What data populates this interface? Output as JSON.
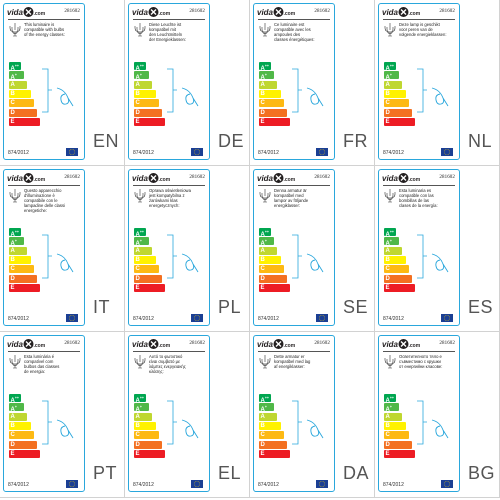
{
  "colors": {
    "card_border": "#2aa7dc",
    "energy_classes": [
      "#00a650",
      "#50b848",
      "#bfd730",
      "#fff200",
      "#fdb913",
      "#f37021",
      "#ed1c24"
    ],
    "eu_flag": "#1b3f94",
    "eu_star": "#ffd200",
    "brand_text": "#231f20"
  },
  "brand": {
    "name": "vidaXL",
    "left_text": "vida",
    "right_text": ".com"
  },
  "energy_classes": [
    {
      "letter": "A",
      "sup": "++"
    },
    {
      "letter": "A",
      "sup": "+"
    },
    {
      "letter": "A",
      "sup": ""
    },
    {
      "letter": "B",
      "sup": ""
    },
    {
      "letter": "C",
      "sup": ""
    },
    {
      "letter": "D",
      "sup": ""
    },
    {
      "letter": "E",
      "sup": ""
    }
  ],
  "icons": {
    "brand": "vidaxl-logo",
    "fixture": "chandelier-icon",
    "compatibility": "bracket-icon",
    "bulb": "lamp-icon",
    "flag": "eu-flag-icon"
  },
  "labels": [
    {
      "lang": "EN",
      "model": "281602",
      "regulation": "874/2012",
      "text": "This luminaire is\ncompatible with bulbs\nof the energy classes:"
    },
    {
      "lang": "DE",
      "model": "281602",
      "regulation": "874/2012",
      "text": "Diese Leuchte ist\nkompatibel mit\nden Leuchtmitteln\nder Energieklassen:"
    },
    {
      "lang": "FR",
      "model": "281602",
      "regulation": "874/2012",
      "text": "Ce luminaire est\ncompatible avec les\nampoules des\nclasses énergétiques:"
    },
    {
      "lang": "NL",
      "model": "281602",
      "regulation": "874/2012",
      "text": "Deze lamp is geschikt\nvoor peren van de\nvolgende energieklassen:"
    },
    {
      "lang": "IT",
      "model": "281602",
      "regulation": "874/2012",
      "text": "Questo apparecchio\nd'illuminazione è\ncompatibile con le\nlampadine delle classi\nenergetiche:"
    },
    {
      "lang": "PL",
      "model": "281602",
      "regulation": "874/2012",
      "text": "Oprawa oświetleniowa\njest kompatybilna z\nżarówkami klas\nenergetycznych:"
    },
    {
      "lang": "SE",
      "model": "281602",
      "regulation": "874/2012",
      "text": "Denna armatur är\nkompatibel med\nlampor av följande\nenergiklasser:"
    },
    {
      "lang": "ES",
      "model": "281602",
      "regulation": "874/2012",
      "text": "Esta luminaria es\ncompatible con las\nbombillas de las\nclases de la energía:"
    },
    {
      "lang": "PT",
      "model": "281602",
      "regulation": "874/2012",
      "text": "Esta luminária é\ncompatível com\nbulbos das classes\nde energia:"
    },
    {
      "lang": "EL",
      "model": "281602",
      "regulation": "874/2012",
      "text": "Αυτό το φωτιστικό\nείναι συμβατό με\nλάμπες ενεργειακής\nκλάσης:"
    },
    {
      "lang": "DA",
      "model": "281602",
      "regulation": "874/2012",
      "text": "Dette armatur er\nkompatibel med lag\naf energiklasser:"
    },
    {
      "lang": "BG",
      "model": "281602",
      "regulation": "874/2012",
      "text": "Осветителното тяло е\nсъвместимо с крушки\nот енергийни класове:"
    }
  ]
}
